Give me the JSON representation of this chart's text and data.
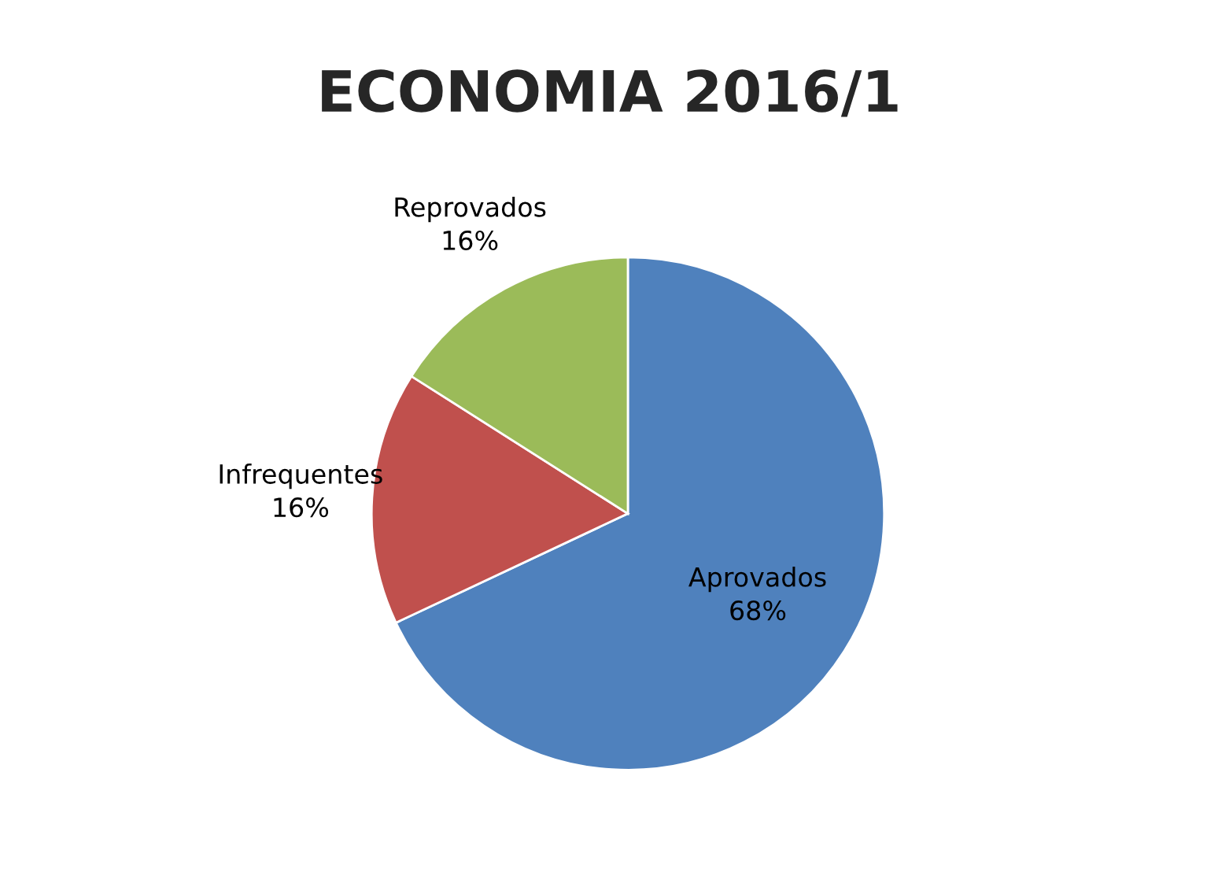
{
  "chart_data": {
    "type": "pie",
    "title": "ECONOMIA 2016/1",
    "categories": [
      "Aprovados",
      "Infrequentes",
      "Reprovados"
    ],
    "values": [
      68,
      16,
      16
    ],
    "value_labels": [
      "68%",
      "16%",
      "16%"
    ],
    "colors": [
      "#4f81bd",
      "#c0504d",
      "#9bbb59"
    ],
    "legend": false
  }
}
